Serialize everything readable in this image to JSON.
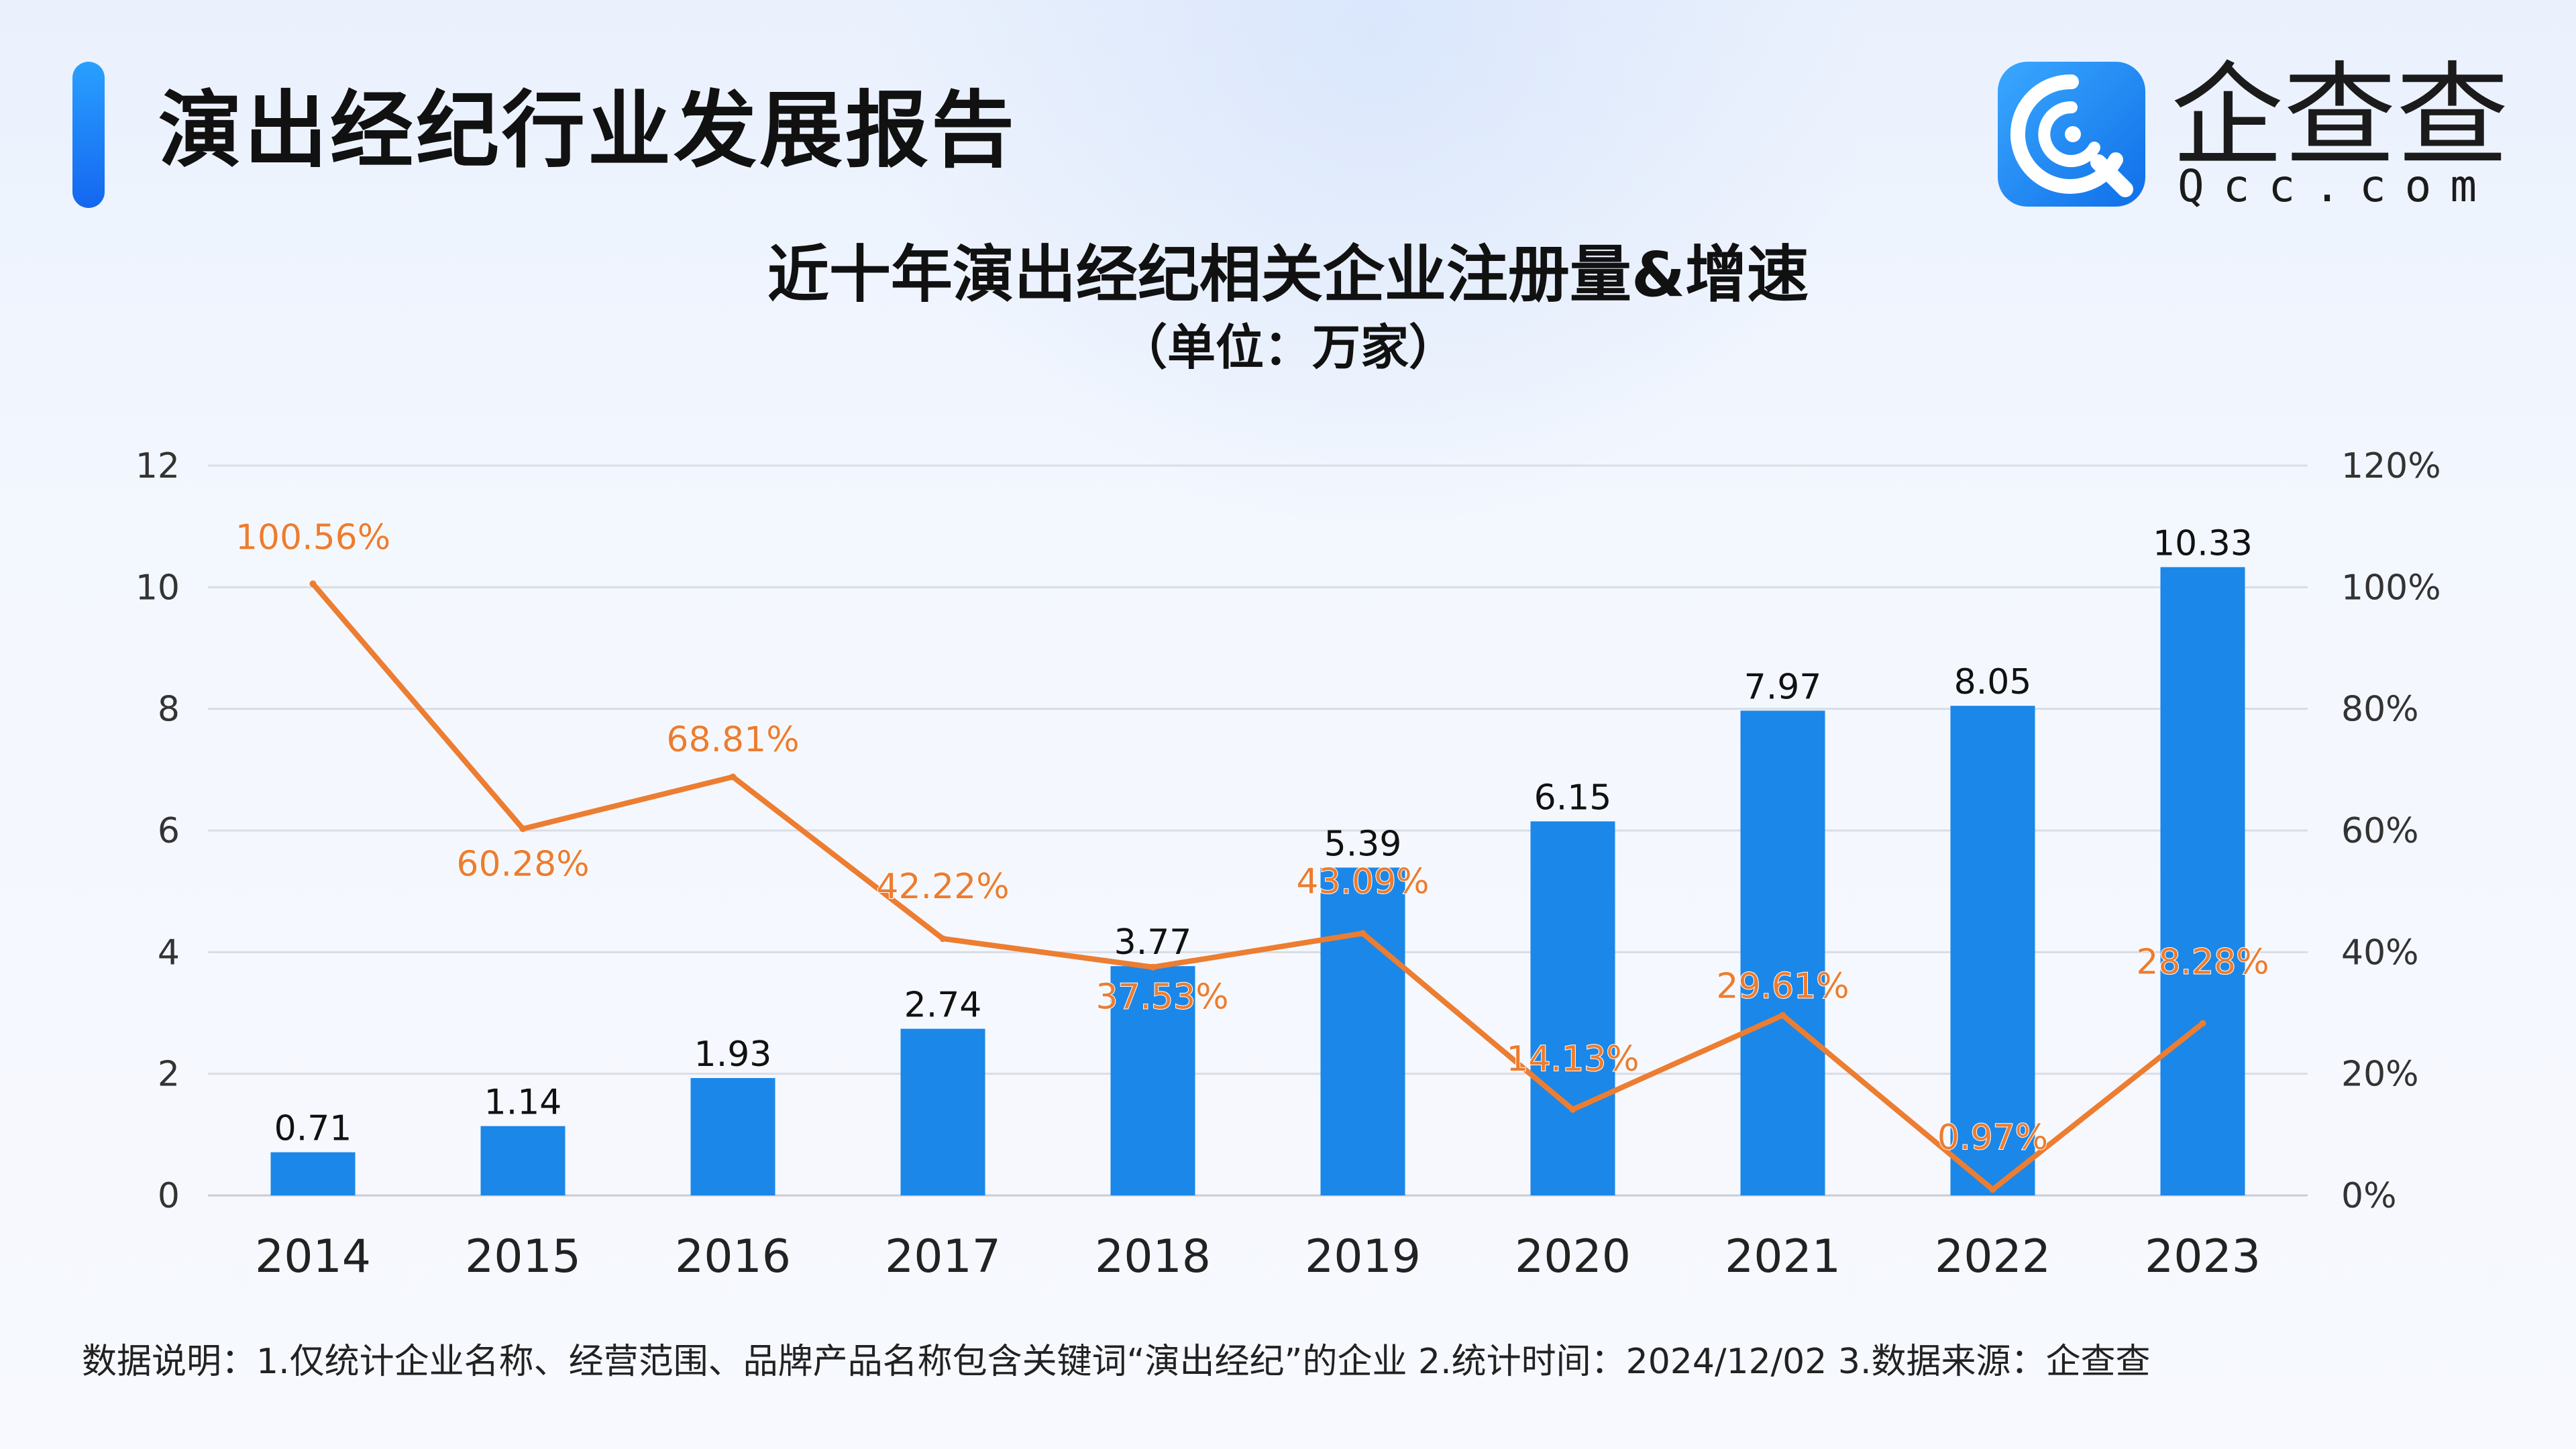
{
  "report_title": "演出经纪行业发展报告",
  "logo": {
    "name": "企查查",
    "sub": "Qcc.com",
    "brand_color": "#1677e8"
  },
  "chart_data": {
    "type": "bar",
    "title": "近十年演出经纪相关企业注册量&增速",
    "subtitle": "（单位：万家）",
    "categories": [
      "2014",
      "2015",
      "2016",
      "2017",
      "2018",
      "2019",
      "2020",
      "2021",
      "2022",
      "2023"
    ],
    "series": [
      {
        "type": "bar",
        "axis": "left",
        "values": [
          0.71,
          1.14,
          1.93,
          2.74,
          3.77,
          5.39,
          6.15,
          7.97,
          8.05,
          10.33
        ],
        "labels": [
          "0.71",
          "1.14",
          "1.93",
          "2.74",
          "3.77",
          "5.39",
          "6.15",
          "7.97",
          "8.05",
          "10.33"
        ],
        "color": "#1b87e8"
      },
      {
        "type": "line",
        "axis": "right",
        "values": [
          100.56,
          60.28,
          68.81,
          42.22,
          37.53,
          43.09,
          14.13,
          29.61,
          0.97,
          28.28
        ],
        "labels": [
          "100.56%",
          "60.28%",
          "68.81%",
          "42.22%",
          "37.53%",
          "43.09%",
          "14.13%",
          "29.61%",
          "0.97%",
          "28.28%"
        ],
        "color": "#ec7d31"
      }
    ],
    "y_left": {
      "min": 0,
      "max": 12,
      "ticks": [
        "0",
        "2",
        "4",
        "6",
        "8",
        "10",
        "12"
      ]
    },
    "y_right": {
      "min": 0,
      "max": 120,
      "ticks": [
        "0%",
        "20%",
        "40%",
        "60%",
        "80%",
        "100%",
        "120%"
      ]
    },
    "grid": true,
    "legend": "none"
  },
  "footnote": "数据说明：1.仅统计企业名称、经营范围、品牌产品名称包含关键词“演出经纪”的企业   2.统计时间：2024/12/02    3.数据来源：企查查"
}
